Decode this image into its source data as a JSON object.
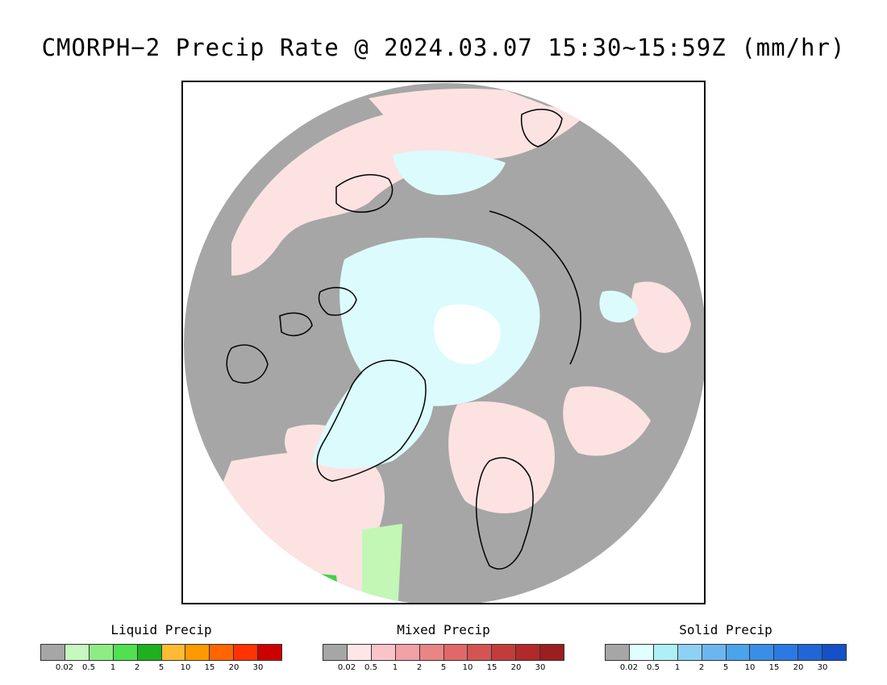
{
  "title": "CMORPH−2 Precip Rate @ 2024.03.07 15:30~15:59Z (mm/hr)",
  "map": {
    "projection": "north-polar-stereographic",
    "colors": {
      "no_precip": "#a6a6a6",
      "outside": "#ffffff",
      "mixed_light": "#fde2e2",
      "mixed_medium": "#ef9a9a",
      "solid_light": "#dcfbfd",
      "solid_medium": "#aeeaf4",
      "liquid_light": "#c2f7b6",
      "liquid_medium": "#3ed24a",
      "coastline": "#000000"
    }
  },
  "legends": [
    {
      "title": "Liquid Precip",
      "ticks": [
        "0.02",
        "0.5",
        "1",
        "2",
        "5",
        "10",
        "15",
        "20",
        "30"
      ],
      "colors": [
        "#a6a6a6",
        "#c6f8c0",
        "#8eec84",
        "#50e050",
        "#1eb01e",
        "#ffbb33",
        "#ff9900",
        "#ff6600",
        "#ff3300",
        "#cc0000"
      ]
    },
    {
      "title": "Mixed Precip",
      "ticks": [
        "0.02",
        "0.5",
        "1",
        "2",
        "5",
        "10",
        "15",
        "20",
        "30"
      ],
      "colors": [
        "#a6a6a6",
        "#fde6e8",
        "#f9c3c8",
        "#f2a1a5",
        "#e98585",
        "#e06868",
        "#d45454",
        "#c33c3c",
        "#b02a2a",
        "#9c1e1e"
      ]
    },
    {
      "title": "Solid Precip",
      "ticks": [
        "0.02",
        "0.5",
        "1",
        "2",
        "5",
        "10",
        "15",
        "20",
        "30"
      ],
      "colors": [
        "#a6a6a6",
        "#e0ffff",
        "#aef0f6",
        "#8fd0f6",
        "#6cb6f0",
        "#4aa3ec",
        "#3a8ee8",
        "#2a7ae2",
        "#2066d6",
        "#1550c8"
      ]
    }
  ]
}
